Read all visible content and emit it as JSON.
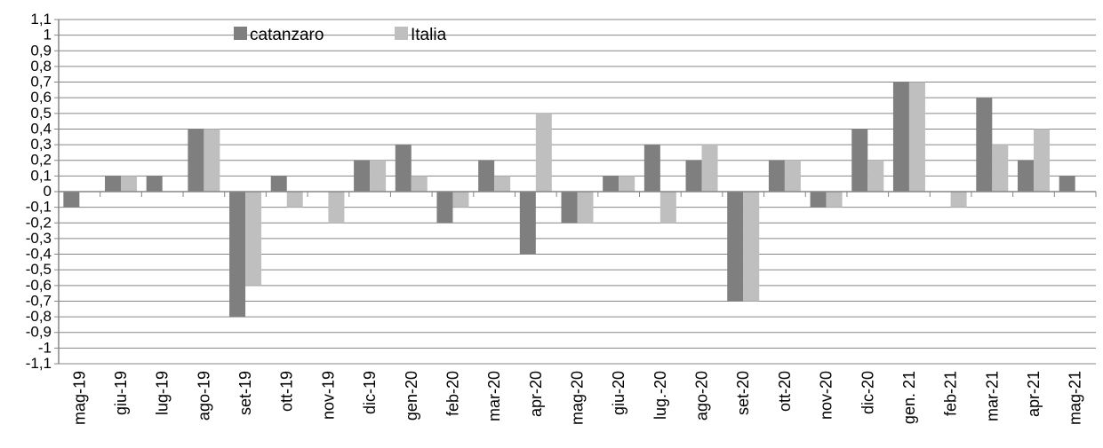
{
  "chart_data": {
    "type": "bar",
    "categories": [
      "mag-19",
      "giu-19",
      "lug-19",
      "ago-19",
      "set-19",
      "ott-19",
      "nov-19",
      "dic-19",
      "gen-20",
      "feb-20",
      "mar-20",
      "apr-20",
      "mag-20",
      "giu-20",
      "lug.-20",
      "ago-20",
      "set-20",
      "ott-20",
      "nov-20",
      "dic-20",
      "gen. 21",
      "feb-21",
      "mar-21",
      "apr-21",
      "mag-21"
    ],
    "series": [
      {
        "name": "catanzaro",
        "color": "#7f7f7f",
        "values": [
          -0.1,
          0.1,
          0.1,
          0.4,
          -0.8,
          0.1,
          0,
          0.2,
          0.3,
          -0.2,
          0.2,
          -0.4,
          -0.2,
          0.1,
          0.3,
          0.2,
          -0.7,
          0.2,
          -0.1,
          0.4,
          0.7,
          0,
          0.6,
          0.2,
          0.1
        ]
      },
      {
        "name": "Italia",
        "color": "#bfbfbf",
        "values": [
          0,
          0.1,
          0,
          0.4,
          -0.6,
          -0.1,
          -0.2,
          0.2,
          0.1,
          -0.1,
          0.1,
          0.5,
          -0.2,
          0.1,
          -0.2,
          0.3,
          -0.7,
          0.2,
          -0.1,
          0.2,
          0.7,
          -0.1,
          0.3,
          0.4,
          0
        ]
      }
    ],
    "yticks": [
      "1,1",
      "1",
      "0,9",
      "0,8",
      "0,7",
      "0,6",
      "0,5",
      "0,4",
      "0,3",
      "0,2",
      "0,1",
      "0",
      "-0,1",
      "-0,2",
      "-0,3",
      "-0,4",
      "-0,5",
      "-0,6",
      "-0,7",
      "-0,8",
      "-0,9",
      "-1",
      "-1,1"
    ],
    "ylim": [
      -1.1,
      1.1
    ],
    "grid": true,
    "legend_position": "top-left"
  }
}
